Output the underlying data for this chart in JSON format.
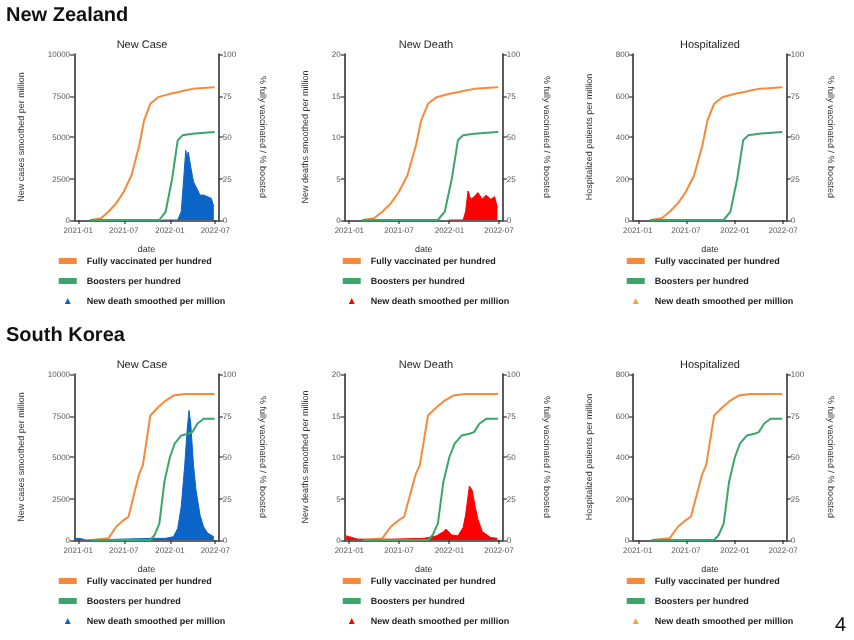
{
  "chart_data": [
    {
      "type": "line",
      "title": "New Case",
      "xlabel": "date",
      "ylabel": "New cases smoothed per million",
      "y2label": "% fully vaccinated / % boosted",
      "annotations": [
        "New Zealand"
      ],
      "legend": "bottom",
      "xlim": [
        "2020-12-15",
        "2022-07-15"
      ],
      "xticks": [
        "2021-01",
        "2021-07",
        "2022-01",
        "2022-07"
      ],
      "ylim": [
        0,
        10000
      ],
      "yticks": [
        0,
        2500,
        5000,
        7500,
        10000
      ],
      "y2lim": [
        0,
        100
      ],
      "y2ticks": [
        0,
        25,
        50,
        75,
        100
      ],
      "series": [
        {
          "name": "Fully vaccinated per hundred",
          "color": "#f58a3c",
          "axis": "y2",
          "x": [
            "2021-02-20",
            "2021-04-01",
            "2021-05-01",
            "2021-06-01",
            "2021-07-01",
            "2021-08-01",
            "2021-09-01",
            "2021-09-20",
            "2021-10-15",
            "2021-11-15",
            "2022-01-01",
            "2022-02-01",
            "2022-03-01",
            "2022-04-01",
            "2022-06-25"
          ],
          "values": [
            0,
            1,
            5,
            10,
            17,
            27,
            45,
            60,
            70,
            74,
            76,
            77,
            78,
            79,
            80
          ]
        },
        {
          "name": "Boosters per hundred",
          "color": "#3aa66a",
          "axis": "y2",
          "x": [
            "2021-02-20",
            "2021-11-20",
            "2021-12-15",
            "2022-01-10",
            "2022-02-01",
            "2022-02-20",
            "2022-04-01",
            "2022-06-25"
          ],
          "values": [
            0,
            0,
            5,
            25,
            48,
            51,
            52,
            53
          ]
        },
        {
          "name": "New death smoothed per million",
          "type": "area",
          "color": "#0b64c8",
          "x": [
            "2021-12-01",
            "2022-02-01",
            "2022-02-15",
            "2022-02-25",
            "2022-03-05",
            "2022-03-10",
            "2022-03-15",
            "2022-03-25",
            "2022-04-05",
            "2022-04-15",
            "2022-05-01",
            "2022-05-15",
            "2022-06-01",
            "2022-06-15",
            "2022-06-25"
          ],
          "values": [
            0,
            0,
            500,
            2500,
            4200,
            3800,
            4100,
            3200,
            2300,
            2000,
            1500,
            1500,
            1400,
            1300,
            800
          ]
        }
      ]
    },
    {
      "type": "line",
      "title": "New Death",
      "xlabel": "date",
      "ylabel": "New deaths smoothed per million",
      "y2label": "% fully vaccinated / % boosted",
      "legend": "bottom",
      "xlim": [
        "2020-12-15",
        "2022-07-15"
      ],
      "xticks": [
        "2021-01",
        "2021-07",
        "2022-01",
        "2022-07"
      ],
      "ylim": [
        0,
        20
      ],
      "yticks": [
        0,
        5,
        10,
        15,
        20
      ],
      "y2lim": [
        0,
        100
      ],
      "y2ticks": [
        0,
        25,
        50,
        75,
        100
      ],
      "series": [
        {
          "name": "Fully vaccinated per hundred",
          "color": "#f58a3c",
          "axis": "y2",
          "x": [
            "2021-02-20",
            "2021-04-01",
            "2021-05-01",
            "2021-06-01",
            "2021-07-01",
            "2021-08-01",
            "2021-09-01",
            "2021-09-20",
            "2021-10-15",
            "2021-11-15",
            "2022-01-01",
            "2022-02-01",
            "2022-03-01",
            "2022-04-01",
            "2022-06-25"
          ],
          "values": [
            0,
            1,
            5,
            10,
            17,
            27,
            45,
            60,
            70,
            74,
            76,
            77,
            78,
            79,
            80
          ]
        },
        {
          "name": "Boosters per hundred",
          "color": "#3aa66a",
          "axis": "y2",
          "x": [
            "2021-02-20",
            "2021-11-20",
            "2021-12-15",
            "2022-01-10",
            "2022-02-01",
            "2022-02-20",
            "2022-04-01",
            "2022-06-25"
          ],
          "values": [
            0,
            0,
            5,
            25,
            48,
            51,
            52,
            53
          ]
        },
        {
          "name": "New death smoothed per million",
          "type": "area",
          "color": "#ff0000",
          "x": [
            "2022-01-01",
            "2022-02-20",
            "2022-03-01",
            "2022-03-10",
            "2022-03-20",
            "2022-04-01",
            "2022-04-15",
            "2022-05-01",
            "2022-05-15",
            "2022-06-01",
            "2022-06-15",
            "2022-06-25"
          ],
          "values": [
            0,
            0,
            1,
            3.5,
            2.5,
            2.8,
            3.3,
            2.5,
            3,
            2.5,
            2.8,
            1.5
          ]
        }
      ]
    },
    {
      "type": "line",
      "title": "Hospitalized",
      "xlabel": "date",
      "ylabel": "Hospitalized patients per million",
      "y2label": "% fully vaccinated / % boosted",
      "legend": "bottom",
      "xlim": [
        "2020-12-15",
        "2022-07-15"
      ],
      "xticks": [
        "2021-01",
        "2021-07",
        "2022-01",
        "2022-07"
      ],
      "ylim": [
        0,
        800
      ],
      "yticks": [
        0,
        200,
        400,
        600,
        800
      ],
      "y2lim": [
        0,
        100
      ],
      "y2ticks": [
        0,
        25,
        50,
        75,
        100
      ],
      "series": [
        {
          "name": "Fully vaccinated per hundred",
          "color": "#f58a3c",
          "axis": "y2",
          "x": [
            "2021-02-20",
            "2021-04-01",
            "2021-05-01",
            "2021-06-01",
            "2021-07-01",
            "2021-08-01",
            "2021-09-01",
            "2021-09-20",
            "2021-10-15",
            "2021-11-15",
            "2022-01-01",
            "2022-02-01",
            "2022-03-01",
            "2022-04-01",
            "2022-06-25"
          ],
          "values": [
            0,
            1,
            5,
            10,
            17,
            27,
            45,
            60,
            70,
            74,
            76,
            77,
            78,
            79,
            80
          ]
        },
        {
          "name": "Boosters per hundred",
          "color": "#3aa66a",
          "axis": "y2",
          "x": [
            "2021-02-20",
            "2021-11-20",
            "2021-12-15",
            "2022-01-10",
            "2022-02-01",
            "2022-02-20",
            "2022-04-01",
            "2022-06-25"
          ],
          "values": [
            0,
            0,
            5,
            25,
            48,
            51,
            52,
            53
          ]
        },
        {
          "name": "New death smoothed per million",
          "type": "area",
          "color": "#f5a623"
        }
      ]
    },
    {
      "type": "line",
      "title": "New Case",
      "xlabel": "date",
      "ylabel": "New cases smoothed per million",
      "y2label": "% fully vaccinated / % boosted",
      "annotations": [
        "South Korea"
      ],
      "legend": "bottom",
      "xlim": [
        "2020-12-15",
        "2022-07-15"
      ],
      "xticks": [
        "2021-01",
        "2021-07",
        "2022-01",
        "2022-07"
      ],
      "ylim": [
        0,
        10000
      ],
      "yticks": [
        0,
        2500,
        5000,
        7500,
        10000
      ],
      "y2lim": [
        0,
        100
      ],
      "y2ticks": [
        0,
        25,
        50,
        75,
        100
      ],
      "series": [
        {
          "name": "Fully vaccinated per hundred",
          "color": "#f58a3c",
          "axis": "y2",
          "x": [
            "2021-02-25",
            "2021-05-01",
            "2021-06-01",
            "2021-07-01",
            "2021-07-20",
            "2021-08-15",
            "2021-09-01",
            "2021-09-15",
            "2021-10-15",
            "2021-11-15",
            "2021-12-15",
            "2022-01-15",
            "2022-03-01",
            "2022-06-25"
          ],
          "values": [
            0,
            1,
            8,
            12,
            14,
            30,
            40,
            45,
            75,
            80,
            84,
            87,
            88,
            88
          ]
        },
        {
          "name": "Boosters per hundred",
          "color": "#3aa66a",
          "axis": "y2",
          "x": [
            "2021-02-25",
            "2021-10-15",
            "2021-11-01",
            "2021-11-20",
            "2021-12-10",
            "2022-01-01",
            "2022-01-20",
            "2022-02-15",
            "2022-03-15",
            "2022-04-01",
            "2022-04-20",
            "2022-05-15",
            "2022-06-25"
          ],
          "values": [
            0,
            0,
            3,
            10,
            35,
            50,
            58,
            63,
            64,
            65,
            70,
            73,
            73
          ]
        },
        {
          "name": "New death smoothed per million",
          "type": "area",
          "color": "#0b64c8",
          "x": [
            "2020-12-20",
            "2021-01-05",
            "2021-02-01",
            "2021-11-01",
            "2021-12-15",
            "2022-01-15",
            "2022-02-01",
            "2022-02-15",
            "2022-03-01",
            "2022-03-10",
            "2022-03-18",
            "2022-03-25",
            "2022-04-05",
            "2022-04-15",
            "2022-05-01",
            "2022-05-15",
            "2022-06-01",
            "2022-06-25"
          ],
          "values": [
            100,
            100,
            0,
            100,
            100,
            200,
            700,
            2000,
            4500,
            6500,
            7800,
            7000,
            4500,
            3000,
            1500,
            800,
            400,
            200
          ]
        }
      ]
    },
    {
      "type": "line",
      "title": "New Death",
      "xlabel": "date",
      "ylabel": "New deaths smoothed per million",
      "y2label": "% fully vaccinated / % boosted",
      "legend": "bottom",
      "xlim": [
        "2020-12-15",
        "2022-07-15"
      ],
      "xticks": [
        "2021-01",
        "2021-07",
        "2022-01",
        "2022-07"
      ],
      "ylim": [
        0,
        20
      ],
      "yticks": [
        0,
        5,
        10,
        15,
        20
      ],
      "y2lim": [
        0,
        100
      ],
      "y2ticks": [
        0,
        25,
        50,
        75,
        100
      ],
      "series": [
        {
          "name": "Fully vaccinated per hundred",
          "color": "#f58a3c",
          "axis": "y2",
          "x": [
            "2021-02-25",
            "2021-05-01",
            "2021-06-01",
            "2021-07-01",
            "2021-07-20",
            "2021-08-15",
            "2021-09-01",
            "2021-09-15",
            "2021-10-15",
            "2021-11-15",
            "2021-12-15",
            "2022-01-15",
            "2022-03-01",
            "2022-06-25"
          ],
          "values": [
            0,
            1,
            8,
            12,
            14,
            30,
            40,
            45,
            75,
            80,
            84,
            87,
            88,
            88
          ]
        },
        {
          "name": "Boosters per hundred",
          "color": "#3aa66a",
          "axis": "y2",
          "x": [
            "2021-02-25",
            "2021-10-15",
            "2021-11-01",
            "2021-11-20",
            "2021-12-10",
            "2022-01-01",
            "2022-01-20",
            "2022-02-15",
            "2022-03-15",
            "2022-04-01",
            "2022-04-20",
            "2022-05-15",
            "2022-06-25"
          ],
          "values": [
            0,
            0,
            3,
            10,
            35,
            50,
            58,
            63,
            64,
            65,
            70,
            73,
            73
          ]
        },
        {
          "name": "New death smoothed per million",
          "type": "area",
          "color": "#ff0000",
          "x": [
            "2020-12-20",
            "2021-01-01",
            "2021-02-01",
            "2021-06-01",
            "2021-10-01",
            "2021-11-15",
            "2021-12-10",
            "2021-12-20",
            "2022-01-10",
            "2022-02-01",
            "2022-02-20",
            "2022-03-01",
            "2022-03-15",
            "2022-03-25",
            "2022-04-05",
            "2022-04-15",
            "2022-05-01",
            "2022-06-01",
            "2022-06-25"
          ],
          "values": [
            0.5,
            0.4,
            0.1,
            0.1,
            0.2,
            0.5,
            1,
            1.3,
            0.6,
            0.5,
            1.5,
            3,
            6.5,
            6,
            4,
            2.5,
            1,
            0.3,
            0.2
          ]
        }
      ]
    },
    {
      "type": "line",
      "title": "Hospitalized",
      "xlabel": "date",
      "ylabel": "Hospitalized patients per million",
      "y2label": "% fully vaccinated / % boosted",
      "annotations": [
        "4"
      ],
      "legend": "bottom",
      "xlim": [
        "2020-12-15",
        "2022-07-15"
      ],
      "xticks": [
        "2021-01",
        "2021-07",
        "2022-01",
        "2022-07"
      ],
      "ylim": [
        0,
        800
      ],
      "yticks": [
        0,
        200,
        400,
        600,
        800
      ],
      "y2lim": [
        0,
        100
      ],
      "y2ticks": [
        0,
        25,
        50,
        75,
        100
      ],
      "series": [
        {
          "name": "Fully vaccinated per hundred",
          "color": "#f58a3c",
          "axis": "y2",
          "x": [
            "2021-02-25",
            "2021-05-01",
            "2021-06-01",
            "2021-07-01",
            "2021-07-20",
            "2021-08-15",
            "2021-09-01",
            "2021-09-15",
            "2021-10-15",
            "2021-11-15",
            "2021-12-15",
            "2022-01-15",
            "2022-03-01",
            "2022-06-25"
          ],
          "values": [
            0,
            1,
            8,
            12,
            14,
            30,
            40,
            45,
            75,
            80,
            84,
            87,
            88,
            88
          ]
        },
        {
          "name": "Boosters per hundred",
          "color": "#3aa66a",
          "axis": "y2",
          "x": [
            "2021-02-25",
            "2021-10-15",
            "2021-11-01",
            "2021-11-20",
            "2021-12-10",
            "2022-01-01",
            "2022-01-20",
            "2022-02-15",
            "2022-03-15",
            "2022-04-01",
            "2022-04-20",
            "2022-05-15",
            "2022-06-25"
          ],
          "values": [
            0,
            0,
            3,
            10,
            35,
            50,
            58,
            63,
            64,
            65,
            70,
            73,
            73
          ]
        },
        {
          "name": "New death smoothed per million",
          "type": "area",
          "color": "#f5a623"
        }
      ]
    }
  ]
}
